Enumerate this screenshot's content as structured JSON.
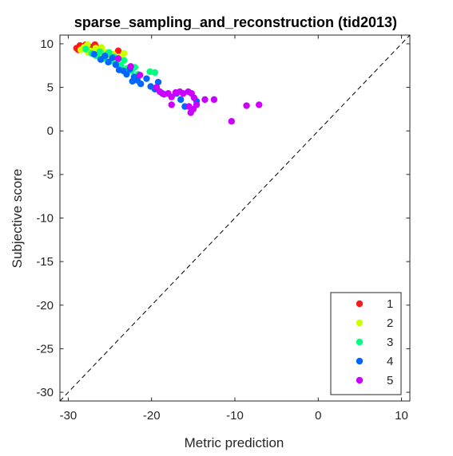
{
  "chart_data": {
    "type": "scatter",
    "title": "sparse_sampling_and_reconstruction (tid2013)",
    "xlabel": "Metric prediction",
    "ylabel": "Subjective score",
    "xlim": [
      -31,
      11
    ],
    "ylim": [
      -31,
      11
    ],
    "xticks": [
      -30,
      -20,
      -10,
      0,
      10
    ],
    "yticks": [
      10,
      5,
      0,
      -5,
      -10,
      -15,
      -20,
      -25,
      -30
    ],
    "grid": false,
    "diagonal_reference": true,
    "legend_position": "bottom-right",
    "series": [
      {
        "name": "1",
        "color": "#ff1a1a",
        "points": [
          [
            -29.0,
            9.5
          ],
          [
            -28.6,
            9.8
          ],
          [
            -28.3,
            9.7
          ],
          [
            -28.0,
            9.6
          ],
          [
            -27.8,
            9.5
          ],
          [
            -27.5,
            9.7
          ],
          [
            -27.2,
            9.6
          ],
          [
            -26.8,
            9.9
          ],
          [
            -26.5,
            9.4
          ],
          [
            -28.8,
            9.3
          ],
          [
            -27.9,
            9.9
          ],
          [
            -26.2,
            9.5
          ],
          [
            -24.0,
            9.2
          ],
          [
            -27.0,
            9.3
          ]
        ]
      },
      {
        "name": "2",
        "color": "#ccff00",
        "points": [
          [
            -28.5,
            9.3
          ],
          [
            -28.1,
            9.6
          ],
          [
            -27.7,
            9.9
          ],
          [
            -27.4,
            9.2
          ],
          [
            -27.1,
            8.9
          ],
          [
            -26.7,
            9.5
          ],
          [
            -26.3,
            9.1
          ],
          [
            -25.9,
            8.7
          ],
          [
            -25.5,
            9.0
          ],
          [
            -25.0,
            8.5
          ],
          [
            -24.6,
            8.8
          ],
          [
            -24.2,
            8.2
          ],
          [
            -23.8,
            8.5
          ],
          [
            -23.3,
            8.9
          ],
          [
            -27.6,
            9.0
          ],
          [
            -26.0,
            9.6
          ]
        ]
      },
      {
        "name": "3",
        "color": "#00ff80",
        "points": [
          [
            -27.9,
            9.4
          ],
          [
            -27.2,
            8.9
          ],
          [
            -26.6,
            8.6
          ],
          [
            -26.2,
            9.1
          ],
          [
            -25.8,
            8.3
          ],
          [
            -25.3,
            8.8
          ],
          [
            -24.9,
            8.0
          ],
          [
            -24.5,
            8.5
          ],
          [
            -24.1,
            7.8
          ],
          [
            -23.7,
            7.5
          ],
          [
            -23.3,
            8.1
          ],
          [
            -22.9,
            7.2
          ],
          [
            -22.4,
            6.9
          ],
          [
            -22.0,
            7.3
          ],
          [
            -21.6,
            6.5
          ],
          [
            -20.2,
            6.8
          ],
          [
            -19.6,
            6.7
          ],
          [
            -25.1,
            9.0
          ]
        ]
      },
      {
        "name": "4",
        "color": "#0066ff",
        "points": [
          [
            -26.9,
            8.8
          ],
          [
            -26.1,
            8.2
          ],
          [
            -25.6,
            8.6
          ],
          [
            -25.2,
            7.9
          ],
          [
            -24.7,
            8.4
          ],
          [
            -24.3,
            7.6
          ],
          [
            -23.9,
            7.0
          ],
          [
            -23.4,
            6.9
          ],
          [
            -23.0,
            6.5
          ],
          [
            -22.6,
            7.1
          ],
          [
            -22.1,
            6.2
          ],
          [
            -21.7,
            5.8
          ],
          [
            -21.3,
            5.4
          ],
          [
            -20.6,
            6.0
          ],
          [
            -20.1,
            5.1
          ],
          [
            -19.6,
            4.8
          ],
          [
            -19.2,
            5.6
          ],
          [
            -18.7,
            4.3
          ],
          [
            -17.0,
            4.3
          ],
          [
            -16.5,
            3.6
          ],
          [
            -16.0,
            2.8
          ],
          [
            -14.6,
            3.4
          ],
          [
            -22.3,
            5.7
          ]
        ]
      },
      {
        "name": "5",
        "color": "#cc00ff",
        "points": [
          [
            -24.0,
            8.3
          ],
          [
            -22.5,
            7.4
          ],
          [
            -21.4,
            6.4
          ],
          [
            -19.4,
            5.0
          ],
          [
            -19.0,
            4.5
          ],
          [
            -18.5,
            4.2
          ],
          [
            -18.0,
            4.3
          ],
          [
            -17.6,
            3.9
          ],
          [
            -17.1,
            4.4
          ],
          [
            -16.6,
            4.5
          ],
          [
            -16.2,
            4.3
          ],
          [
            -15.6,
            4.5
          ],
          [
            -15.2,
            4.3
          ],
          [
            -14.9,
            3.8
          ],
          [
            -14.6,
            3.0
          ],
          [
            -15.0,
            2.5
          ],
          [
            -15.3,
            2.1
          ],
          [
            -13.6,
            3.6
          ],
          [
            -12.5,
            3.6
          ],
          [
            -10.4,
            1.1
          ],
          [
            -8.6,
            2.9
          ],
          [
            -7.1,
            3.0
          ],
          [
            -17.6,
            3.0
          ],
          [
            -15.5,
            2.8
          ]
        ]
      }
    ]
  }
}
